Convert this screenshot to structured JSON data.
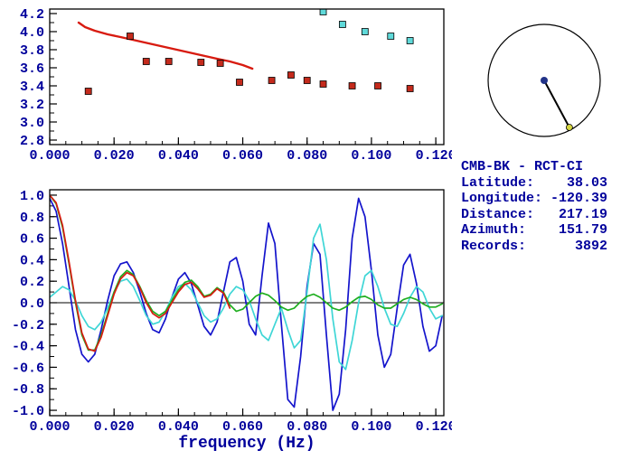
{
  "colors": {
    "text": "#00009c",
    "axis": "#000000",
    "background": "#ffffff",
    "red": "#d81b10",
    "blue": "#1414cc",
    "cyan": "#3fd6d6",
    "green": "#1fae1f",
    "marker_red": "#c42a1c",
    "marker_cyan": "#5fd9d9",
    "inset_center_dot": "#223388",
    "inset_end_dot": "#d6d640"
  },
  "station": {
    "title": "CMB-BK - RCT-CI",
    "lines": [
      "Latitude:    38.03",
      "Longitude: -120.39",
      "Distance:   217.19",
      "Azimuth:    151.79",
      "Records:      3892"
    ]
  },
  "inset": {
    "azimuth_deg": 151.79
  },
  "chart_data": [
    {
      "type": "scatter",
      "title": "",
      "xlabel": "",
      "ylabel": "",
      "xlim": [
        0,
        0.1225
      ],
      "ylim": [
        2.75,
        4.25
      ],
      "xminor": 0.005,
      "yminor": 0.1,
      "grid": false,
      "xticks": {
        "values": [
          0,
          0.02,
          0.04,
          0.06,
          0.08,
          0.1,
          0.12
        ],
        "labels": [
          "0.000",
          "0.020",
          "0.040",
          "0.060",
          "0.080",
          "0.100",
          "0.120"
        ]
      },
      "yticks": {
        "values": [
          4.2,
          4.0,
          3.8,
          3.6,
          3.4,
          3.2,
          3.0,
          2.8
        ],
        "labels": [
          "4.2",
          "4.0",
          "3.8",
          "3.6",
          "3.4",
          "3.2",
          "3.0",
          "2.8"
        ]
      },
      "series": [
        {
          "name": "predicted-phase-velocity-curve",
          "type": "line",
          "color": "#d81b10",
          "width": 2.4,
          "points": [
            [
              0.009,
              4.1
            ],
            [
              0.011,
              4.05
            ],
            [
              0.014,
              4.01
            ],
            [
              0.018,
              3.97
            ],
            [
              0.022,
              3.94
            ],
            [
              0.027,
              3.9
            ],
            [
              0.032,
              3.86
            ],
            [
              0.037,
              3.82
            ],
            [
              0.042,
              3.78
            ],
            [
              0.047,
              3.74
            ],
            [
              0.052,
              3.7
            ],
            [
              0.056,
              3.67
            ],
            [
              0.06,
              3.63
            ],
            [
              0.063,
              3.59
            ]
          ]
        },
        {
          "name": "measured-phase-velocity-points",
          "type": "squares",
          "color": "#c42a1c",
          "points": [
            [
              0.012,
              3.34
            ],
            [
              0.025,
              3.95
            ],
            [
              0.03,
              3.67
            ],
            [
              0.037,
              3.67
            ],
            [
              0.047,
              3.66
            ],
            [
              0.053,
              3.65
            ],
            [
              0.059,
              3.44
            ],
            [
              0.069,
              3.46
            ],
            [
              0.075,
              3.52
            ],
            [
              0.08,
              3.46
            ],
            [
              0.085,
              3.42
            ],
            [
              0.094,
              3.4
            ],
            [
              0.102,
              3.4
            ],
            [
              0.112,
              3.37
            ]
          ]
        },
        {
          "name": "alternate-branch-points",
          "type": "squares",
          "color": "#5fd9d9",
          "points": [
            [
              0.085,
              4.22
            ],
            [
              0.091,
              4.08
            ],
            [
              0.098,
              4.0
            ],
            [
              0.106,
              3.95
            ],
            [
              0.112,
              3.9
            ]
          ]
        }
      ]
    },
    {
      "type": "line",
      "title": "",
      "xlabel": "frequency (Hz)",
      "ylabel": "",
      "xlim": [
        0,
        0.1225
      ],
      "ylim": [
        -1.05,
        1.05
      ],
      "xminor": 0.005,
      "yminor": 0.1,
      "zero_line": true,
      "grid": false,
      "xticks": {
        "values": [
          0,
          0.02,
          0.04,
          0.06,
          0.08,
          0.1,
          0.12
        ],
        "labels": [
          "0.000",
          "0.020",
          "0.040",
          "0.060",
          "0.080",
          "0.100",
          "0.120"
        ]
      },
      "yticks": {
        "values": [
          1.0,
          0.8,
          0.6,
          0.4,
          0.2,
          0.0,
          -0.2,
          -0.4,
          -0.6,
          -0.8,
          -1.0
        ],
        "labels": [
          "1.0",
          "0.8",
          "0.6",
          "0.4",
          "0.2",
          "0.0",
          "-0.2",
          "-0.4",
          "-0.6",
          "-0.8",
          "-1.0"
        ]
      },
      "series": [
        {
          "name": "observed-spectrum-blue",
          "type": "line",
          "color": "#1414cc",
          "width": 1.7,
          "x0": 0,
          "dx": 0.002,
          "values": [
            0.97,
            0.85,
            0.55,
            0.15,
            -0.25,
            -0.48,
            -0.55,
            -0.48,
            -0.25,
            0.02,
            0.25,
            0.36,
            0.38,
            0.28,
            0.1,
            -0.1,
            -0.25,
            -0.28,
            -0.15,
            0.05,
            0.22,
            0.28,
            0.18,
            -0.02,
            -0.22,
            -0.3,
            -0.18,
            0.1,
            0.38,
            0.42,
            0.2,
            -0.2,
            -0.3,
            0.25,
            0.74,
            0.55,
            -0.2,
            -0.9,
            -0.97,
            -0.5,
            0.15,
            0.55,
            0.45,
            -0.3,
            -1.0,
            -0.85,
            -0.25,
            0.6,
            0.97,
            0.8,
            0.3,
            -0.3,
            -0.6,
            -0.48,
            -0.05,
            0.35,
            0.45,
            0.18,
            -0.22,
            -0.45,
            -0.4,
            -0.12
          ]
        },
        {
          "name": "observed-spectrum-cyan",
          "type": "line",
          "color": "#3fd6d6",
          "width": 1.7,
          "x0": 0,
          "dx": 0.002,
          "values": [
            0.05,
            0.1,
            0.15,
            0.12,
            0.02,
            -0.12,
            -0.22,
            -0.25,
            -0.18,
            -0.05,
            0.1,
            0.2,
            0.22,
            0.15,
            0.02,
            -0.12,
            -0.2,
            -0.18,
            -0.08,
            0.05,
            0.15,
            0.18,
            0.12,
            0.0,
            -0.12,
            -0.18,
            -0.15,
            -0.05,
            0.08,
            0.15,
            0.12,
            0.02,
            -0.15,
            -0.3,
            -0.35,
            -0.2,
            -0.05,
            -0.25,
            -0.42,
            -0.35,
            0.1,
            0.6,
            0.73,
            0.4,
            -0.15,
            -0.55,
            -0.62,
            -0.35,
            0.0,
            0.25,
            0.3,
            0.15,
            -0.05,
            -0.2,
            -0.22,
            -0.1,
            0.05,
            0.15,
            0.1,
            -0.05,
            -0.15,
            -0.12
          ]
        },
        {
          "name": "model-spectrum-green",
          "type": "line",
          "color": "#1fae1f",
          "width": 1.7,
          "x0": 0,
          "dx": 0.002,
          "values": [
            1.0,
            0.92,
            0.7,
            0.36,
            0.0,
            -0.3,
            -0.44,
            -0.44,
            -0.3,
            -0.1,
            0.1,
            0.24,
            0.3,
            0.26,
            0.15,
            0.02,
            -0.08,
            -0.12,
            -0.08,
            0.02,
            0.12,
            0.19,
            0.21,
            0.15,
            0.06,
            0.08,
            0.14,
            0.1,
            -0.02,
            -0.08,
            -0.06,
            0.0,
            0.06,
            0.09,
            0.07,
            0.02,
            -0.04,
            -0.07,
            -0.05,
            0.01,
            0.06,
            0.08,
            0.05,
            0.0,
            -0.05,
            -0.07,
            -0.04,
            0.01,
            0.05,
            0.06,
            0.03,
            -0.02,
            -0.05,
            -0.05,
            -0.01,
            0.03,
            0.05,
            0.03,
            -0.01,
            -0.04,
            -0.04,
            -0.01
          ]
        },
        {
          "name": "model-spectrum-red",
          "type": "line",
          "color": "#d81b10",
          "width": 1.7,
          "x0": 0,
          "dx": 0.002,
          "values": [
            1.0,
            0.93,
            0.72,
            0.38,
            0.02,
            -0.28,
            -0.43,
            -0.45,
            -0.32,
            -0.12,
            0.08,
            0.22,
            0.28,
            0.25,
            0.14,
            0.0,
            -0.1,
            -0.14,
            -0.1,
            0.0,
            0.1,
            0.17,
            0.19,
            0.13,
            0.05,
            0.07,
            0.13,
            0.09,
            -0.05
          ]
        }
      ]
    }
  ]
}
